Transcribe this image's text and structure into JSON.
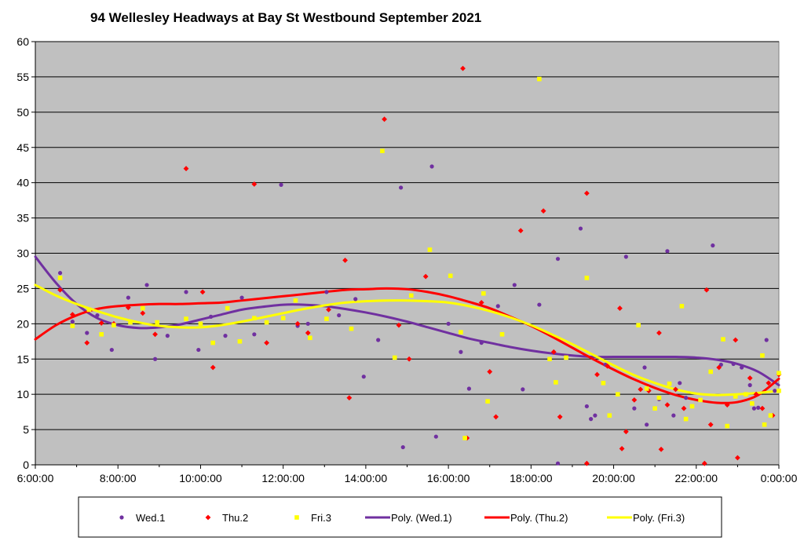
{
  "chart_data": {
    "type": "scatter",
    "title": "94 Wellesley Headways at Bay St Westbound September 2021",
    "xlabel": "",
    "ylabel": "",
    "xlim": [
      6,
      24
    ],
    "ylim": [
      0,
      60
    ],
    "x_ticks": [
      {
        "value": 6,
        "label": "6:00:00"
      },
      {
        "value": 8,
        "label": "8:00:00"
      },
      {
        "value": 10,
        "label": "10:00:00"
      },
      {
        "value": 12,
        "label": "12:00:00"
      },
      {
        "value": 14,
        "label": "14:00:00"
      },
      {
        "value": 16,
        "label": "16:00:00"
      },
      {
        "value": 18,
        "label": "18:00:00"
      },
      {
        "value": 20,
        "label": "20:00:00"
      },
      {
        "value": 22,
        "label": "22:00:00"
      },
      {
        "value": 24,
        "label": "0:00:00"
      }
    ],
    "y_ticks": [
      0,
      5,
      10,
      15,
      20,
      25,
      30,
      35,
      40,
      45,
      50,
      55,
      60
    ],
    "grid": "horizontal",
    "plot_background": "#C0C0C0",
    "legend_position": "bottom",
    "series": [
      {
        "name": "Wed.1",
        "kind": "points",
        "marker": "circle",
        "color": "#7030A0",
        "points": [
          [
            6.6,
            27.2
          ],
          [
            6.9,
            20.3
          ],
          [
            7.25,
            18.7
          ],
          [
            7.5,
            21.2
          ],
          [
            7.85,
            16.3
          ],
          [
            8.25,
            23.7
          ],
          [
            8.7,
            25.5
          ],
          [
            8.9,
            15
          ],
          [
            9.2,
            18.3
          ],
          [
            9.65,
            24.5
          ],
          [
            9.95,
            16.3
          ],
          [
            10.25,
            21
          ],
          [
            10.6,
            18.3
          ],
          [
            11,
            23.7
          ],
          [
            11.3,
            18.5
          ],
          [
            11.95,
            39.7
          ],
          [
            12.35,
            19.7
          ],
          [
            12.6,
            20
          ],
          [
            13.05,
            24.5
          ],
          [
            13.35,
            21.2
          ],
          [
            13.75,
            23.5
          ],
          [
            13.95,
            12.5
          ],
          [
            14.3,
            17.7
          ],
          [
            14.85,
            39.3
          ],
          [
            14.9,
            2.5
          ],
          [
            15.6,
            42.3
          ],
          [
            15.7,
            4
          ],
          [
            16,
            20
          ],
          [
            16.3,
            16
          ],
          [
            16.5,
            10.8
          ],
          [
            16.8,
            17.3
          ],
          [
            17.2,
            22.5
          ],
          [
            17.6,
            25.5
          ],
          [
            17.8,
            10.7
          ],
          [
            18.2,
            22.7
          ],
          [
            18.65,
            29.2
          ],
          [
            18.65,
            0.2
          ],
          [
            19.2,
            33.5
          ],
          [
            19.35,
            8.3
          ],
          [
            19.45,
            6.5
          ],
          [
            19.55,
            7
          ],
          [
            19.8,
            14.2
          ],
          [
            20.3,
            29.5
          ],
          [
            20.5,
            8
          ],
          [
            20.75,
            13.8
          ],
          [
            20.8,
            5.7
          ],
          [
            21.1,
            9.3
          ],
          [
            21.3,
            30.3
          ],
          [
            21.45,
            7
          ],
          [
            21.6,
            11.6
          ],
          [
            21.75,
            9.5
          ],
          [
            22.4,
            31.1
          ],
          [
            22.6,
            14.2
          ],
          [
            22.9,
            14.3
          ],
          [
            23.1,
            13.8
          ],
          [
            23.3,
            11.3
          ],
          [
            23.4,
            8
          ],
          [
            23.5,
            8.1
          ],
          [
            23.7,
            17.7
          ],
          [
            23.9,
            10.5
          ]
        ]
      },
      {
        "name": "Thu.2",
        "kind": "points",
        "marker": "diamond",
        "color": "#FF0000",
        "points": [
          [
            6.6,
            24.8
          ],
          [
            6.9,
            21.3
          ],
          [
            7.25,
            17.3
          ],
          [
            7.6,
            20.1
          ],
          [
            7.9,
            20
          ],
          [
            8.25,
            22.3
          ],
          [
            8.6,
            21.5
          ],
          [
            8.9,
            18.5
          ],
          [
            9.65,
            42
          ],
          [
            10.05,
            24.5
          ],
          [
            10.3,
            13.8
          ],
          [
            11.3,
            39.8
          ],
          [
            11.6,
            17.3
          ],
          [
            12.35,
            20
          ],
          [
            12.6,
            18.7
          ],
          [
            13.1,
            22
          ],
          [
            13.5,
            29
          ],
          [
            13.6,
            9.5
          ],
          [
            14.45,
            49
          ],
          [
            14.8,
            19.8
          ],
          [
            15.05,
            15
          ],
          [
            15.45,
            26.7
          ],
          [
            16.35,
            56.2
          ],
          [
            16.45,
            3.8
          ],
          [
            16.8,
            23
          ],
          [
            17,
            13.2
          ],
          [
            17.15,
            6.8
          ],
          [
            17.75,
            33.2
          ],
          [
            18.3,
            36
          ],
          [
            18.55,
            16
          ],
          [
            18.7,
            6.8
          ],
          [
            19.35,
            38.5
          ],
          [
            19.35,
            0.2
          ],
          [
            19.6,
            12.8
          ],
          [
            19.85,
            14
          ],
          [
            20.15,
            22.2
          ],
          [
            20.2,
            2.3
          ],
          [
            20.3,
            4.7
          ],
          [
            20.5,
            9.2
          ],
          [
            20.65,
            10.7
          ],
          [
            20.85,
            10.5
          ],
          [
            21.1,
            18.7
          ],
          [
            21.15,
            2.2
          ],
          [
            21.3,
            8.5
          ],
          [
            21.5,
            10.7
          ],
          [
            21.7,
            8
          ],
          [
            22.25,
            24.8
          ],
          [
            22.2,
            0.2
          ],
          [
            22.35,
            5.7
          ],
          [
            22.55,
            13.8
          ],
          [
            22.75,
            8.5
          ],
          [
            22.95,
            17.7
          ],
          [
            23,
            1
          ],
          [
            23.3,
            12.3
          ],
          [
            23.45,
            10
          ],
          [
            23.6,
            8
          ],
          [
            23.75,
            11.6
          ],
          [
            23.85,
            7
          ],
          [
            24,
            12.8
          ]
        ]
      },
      {
        "name": "Fri.3",
        "kind": "points",
        "marker": "square",
        "color": "#FFFF00",
        "points": [
          [
            6.6,
            26.5
          ],
          [
            6.9,
            19.7
          ],
          [
            7.3,
            22
          ],
          [
            7.6,
            18.5
          ],
          [
            7.9,
            19.8
          ],
          [
            8.3,
            20.2
          ],
          [
            8.6,
            22.2
          ],
          [
            8.95,
            20.2
          ],
          [
            9.65,
            20.7
          ],
          [
            10,
            20
          ],
          [
            10.3,
            17.3
          ],
          [
            10.65,
            22.2
          ],
          [
            10.95,
            17.5
          ],
          [
            11.3,
            20.8
          ],
          [
            11.6,
            20.2
          ],
          [
            12,
            20.8
          ],
          [
            12.3,
            23.3
          ],
          [
            12.65,
            18
          ],
          [
            13.05,
            20.7
          ],
          [
            13.65,
            19.3
          ],
          [
            14.4,
            44.5
          ],
          [
            14.7,
            15.2
          ],
          [
            15.1,
            24
          ],
          [
            15.55,
            30.5
          ],
          [
            16.05,
            26.8
          ],
          [
            16.3,
            18.8
          ],
          [
            16.4,
            3.8
          ],
          [
            16.85,
            24.3
          ],
          [
            16.95,
            9
          ],
          [
            17.3,
            18.5
          ],
          [
            18.2,
            54.7
          ],
          [
            18.45,
            15
          ],
          [
            18.6,
            11.7
          ],
          [
            18.85,
            15.2
          ],
          [
            19.35,
            26.5
          ],
          [
            19.75,
            11.6
          ],
          [
            19.9,
            7
          ],
          [
            20.1,
            10
          ],
          [
            20.6,
            19.8
          ],
          [
            20.8,
            10.8
          ],
          [
            21,
            8
          ],
          [
            21.1,
            9.5
          ],
          [
            21.35,
            11.5
          ],
          [
            21.65,
            22.5
          ],
          [
            21.75,
            6.5
          ],
          [
            21.9,
            8.3
          ],
          [
            22.1,
            9.2
          ],
          [
            22.35,
            13.2
          ],
          [
            22.65,
            17.8
          ],
          [
            22.75,
            5.5
          ],
          [
            22.95,
            9.7
          ],
          [
            23.2,
            10
          ],
          [
            23.35,
            8.7
          ],
          [
            23.6,
            15.5
          ],
          [
            23.65,
            5.7
          ],
          [
            23.8,
            7
          ],
          [
            24,
            13
          ],
          [
            24,
            10.5
          ]
        ]
      },
      {
        "name": "Poly. (Wed.1)",
        "kind": "trendline",
        "color": "#7030A0",
        "points": [
          [
            6,
            29.5
          ],
          [
            6.5,
            25.8
          ],
          [
            7,
            22.8
          ],
          [
            7.5,
            20.8
          ],
          [
            8,
            19.8
          ],
          [
            8.5,
            19.4
          ],
          [
            9,
            19.5
          ],
          [
            9.5,
            19.9
          ],
          [
            10,
            20.6
          ],
          [
            10.5,
            21.3
          ],
          [
            11,
            22
          ],
          [
            11.5,
            22.4
          ],
          [
            12,
            22.7
          ],
          [
            12.5,
            22.7
          ],
          [
            13,
            22.5
          ],
          [
            13.5,
            22.1
          ],
          [
            14,
            21.6
          ],
          [
            14.5,
            21
          ],
          [
            15,
            20.3
          ],
          [
            15.5,
            19.5
          ],
          [
            16,
            18.7
          ],
          [
            16.5,
            17.9
          ],
          [
            17,
            17.3
          ],
          [
            17.5,
            16.7
          ],
          [
            18,
            16.2
          ],
          [
            18.5,
            15.8
          ],
          [
            19,
            15.5
          ],
          [
            19.5,
            15.3
          ],
          [
            20,
            15.3
          ],
          [
            20.5,
            15.3
          ],
          [
            21,
            15.3
          ],
          [
            21.5,
            15.3
          ],
          [
            22,
            15.2
          ],
          [
            22.5,
            14.9
          ],
          [
            23,
            14.3
          ],
          [
            23.5,
            13.2
          ],
          [
            24,
            11.3
          ]
        ]
      },
      {
        "name": "Poly. (Thu.2)",
        "kind": "trendline",
        "color": "#FF0000",
        "points": [
          [
            6,
            17.8
          ],
          [
            6.5,
            19.8
          ],
          [
            7,
            21.2
          ],
          [
            7.5,
            22.1
          ],
          [
            8,
            22.5
          ],
          [
            8.5,
            22.7
          ],
          [
            9,
            22.8
          ],
          [
            9.5,
            22.8
          ],
          [
            10,
            22.9
          ],
          [
            10.5,
            23
          ],
          [
            11,
            23.3
          ],
          [
            11.5,
            23.6
          ],
          [
            12,
            23.9
          ],
          [
            12.5,
            24.2
          ],
          [
            13,
            24.5
          ],
          [
            13.5,
            24.8
          ],
          [
            14,
            24.9
          ],
          [
            14.5,
            25
          ],
          [
            15,
            24.9
          ],
          [
            15.5,
            24.5
          ],
          [
            16,
            23.9
          ],
          [
            16.5,
            23.1
          ],
          [
            17,
            22.2
          ],
          [
            17.5,
            21
          ],
          [
            18,
            19.7
          ],
          [
            18.5,
            18.2
          ],
          [
            19,
            16.6
          ],
          [
            19.5,
            15
          ],
          [
            20,
            13.5
          ],
          [
            20.5,
            12.1
          ],
          [
            21,
            10.9
          ],
          [
            21.5,
            9.9
          ],
          [
            22,
            9.2
          ],
          [
            22.5,
            8.8
          ],
          [
            23,
            8.9
          ],
          [
            23.5,
            9.9
          ],
          [
            24,
            12.2
          ]
        ]
      },
      {
        "name": "Poly. (Fri.3)",
        "kind": "trendline",
        "color": "#FFFF00",
        "points": [
          [
            6,
            25.5
          ],
          [
            6.5,
            24
          ],
          [
            7,
            22.8
          ],
          [
            7.5,
            21.8
          ],
          [
            8,
            20.9
          ],
          [
            8.5,
            20.2
          ],
          [
            9,
            19.7
          ],
          [
            9.5,
            19.5
          ],
          [
            10,
            19.5
          ],
          [
            10.5,
            19.8
          ],
          [
            11,
            20.3
          ],
          [
            11.5,
            20.9
          ],
          [
            12,
            21.5
          ],
          [
            12.5,
            22.1
          ],
          [
            13,
            22.6
          ],
          [
            13.5,
            23
          ],
          [
            14,
            23.2
          ],
          [
            14.5,
            23.3
          ],
          [
            15,
            23.3
          ],
          [
            15.5,
            23.2
          ],
          [
            16,
            23
          ],
          [
            16.5,
            22.5
          ],
          [
            17,
            21.8
          ],
          [
            17.5,
            20.9
          ],
          [
            18,
            19.8
          ],
          [
            18.5,
            18.5
          ],
          [
            19,
            17.1
          ],
          [
            19.5,
            15.6
          ],
          [
            20,
            14.1
          ],
          [
            20.5,
            12.7
          ],
          [
            21,
            11.6
          ],
          [
            21.5,
            10.7
          ],
          [
            22,
            10.1
          ],
          [
            22.5,
            9.9
          ],
          [
            23,
            10
          ],
          [
            23.5,
            10.2
          ],
          [
            24,
            10.5
          ]
        ]
      }
    ]
  }
}
